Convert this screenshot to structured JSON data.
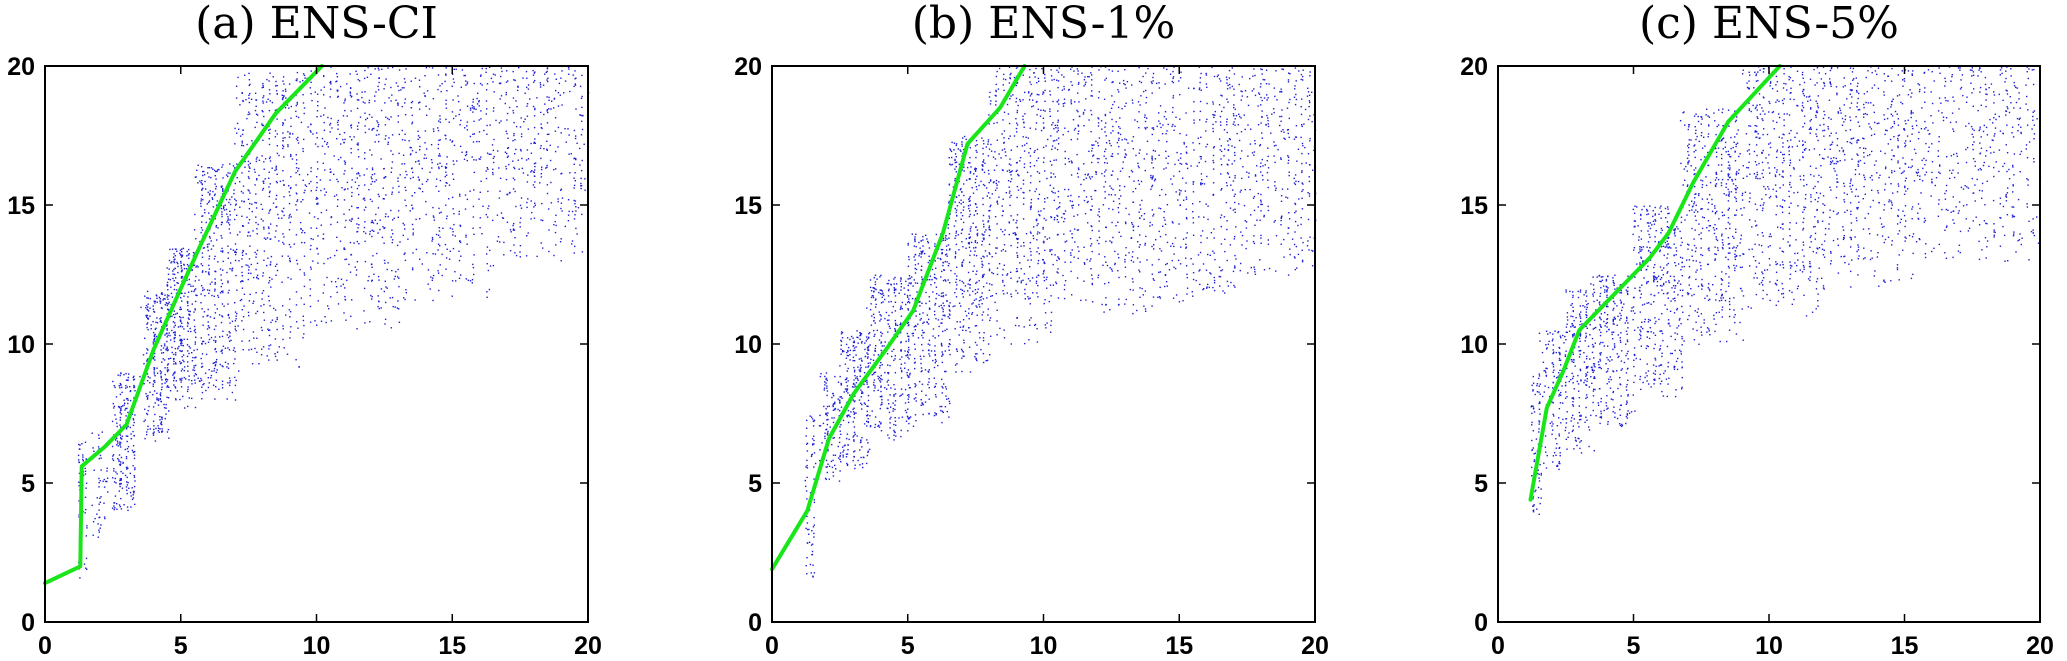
{
  "chart_data": [
    {
      "type": "scatter",
      "title": "(a) ENS-CI",
      "xlim": [
        0,
        20
      ],
      "ylim": [
        0,
        20
      ],
      "xticks": [
        0,
        5,
        10,
        15,
        20
      ],
      "yticks": [
        0,
        5,
        10,
        15,
        20
      ],
      "grid": false,
      "point_color": "#1f1fd6",
      "line_color": "#19e619",
      "scatter_seed": 11,
      "scatter_regions": [
        {
          "x": [
            1.2,
            1.5
          ],
          "y": [
            1.5,
            6.5
          ],
          "n": 60
        },
        {
          "x": [
            1.8,
            2.2
          ],
          "y": [
            3.0,
            7.0
          ],
          "n": 50
        },
        {
          "x": [
            2.5,
            3.3
          ],
          "y": [
            4.0,
            9.0
          ],
          "n": 230
        },
        {
          "x": [
            3.6,
            4.5
          ],
          "y": [
            6.5,
            12.0
          ],
          "n": 260
        },
        {
          "x": [
            4.5,
            5.5
          ],
          "y": [
            7.5,
            13.5
          ],
          "n": 300
        },
        {
          "x": [
            5.5,
            7.0
          ],
          "y": [
            8.0,
            16.5
          ],
          "n": 420
        },
        {
          "x": [
            7.0,
            9.5
          ],
          "y": [
            9.0,
            19.8
          ],
          "n": 520
        },
        {
          "x": [
            9.5,
            13.0
          ],
          "y": [
            10.5,
            20.0
          ],
          "n": 520
        },
        {
          "x": [
            13.0,
            16.5
          ],
          "y": [
            11.5,
            20.0
          ],
          "n": 420
        },
        {
          "x": [
            16.5,
            20.0
          ],
          "y": [
            13.0,
            20.0
          ],
          "n": 380
        }
      ],
      "fit_line": {
        "x": [
          0,
          1.3,
          1.35,
          2.2,
          3.0,
          4.0,
          5.0,
          5.7,
          7.0,
          8.5,
          10.2
        ],
        "y": [
          1.4,
          2.0,
          5.6,
          6.3,
          7.1,
          9.8,
          12.0,
          13.5,
          16.2,
          18.3,
          20.0
        ]
      }
    },
    {
      "type": "scatter",
      "title": "(b) ENS-1%",
      "xlim": [
        0,
        20
      ],
      "ylim": [
        0,
        20
      ],
      "xticks": [
        0,
        5,
        10,
        15,
        20
      ],
      "yticks": [
        0,
        5,
        10,
        15,
        20
      ],
      "grid": false,
      "point_color": "#1f1fd6",
      "line_color": "#19e619",
      "scatter_seed": 23,
      "scatter_regions": [
        {
          "x": [
            1.2,
            1.6
          ],
          "y": [
            1.5,
            7.5
          ],
          "n": 70
        },
        {
          "x": [
            1.8,
            2.5
          ],
          "y": [
            5.0,
            9.0
          ],
          "n": 120
        },
        {
          "x": [
            2.5,
            3.6
          ],
          "y": [
            5.5,
            10.5
          ],
          "n": 260
        },
        {
          "x": [
            3.6,
            5.0
          ],
          "y": [
            6.5,
            12.5
          ],
          "n": 320
        },
        {
          "x": [
            5.0,
            6.5
          ],
          "y": [
            7.0,
            14.0
          ],
          "n": 360
        },
        {
          "x": [
            6.5,
            8.0
          ],
          "y": [
            9.0,
            17.5
          ],
          "n": 420
        },
        {
          "x": [
            8.0,
            10.5
          ],
          "y": [
            10.0,
            20.0
          ],
          "n": 520
        },
        {
          "x": [
            10.5,
            14.0
          ],
          "y": [
            11.0,
            20.0
          ],
          "n": 520
        },
        {
          "x": [
            14.0,
            17.0
          ],
          "y": [
            11.5,
            20.0
          ],
          "n": 400
        },
        {
          "x": [
            17.0,
            20.0
          ],
          "y": [
            12.5,
            20.0
          ],
          "n": 360
        }
      ],
      "fit_line": {
        "x": [
          0,
          1.3,
          2.1,
          3.0,
          4.2,
          5.2,
          6.3,
          7.2,
          8.4,
          9.3
        ],
        "y": [
          1.9,
          4.0,
          6.6,
          8.2,
          9.8,
          11.2,
          14.0,
          17.2,
          18.5,
          20.0
        ]
      }
    },
    {
      "type": "scatter",
      "title": "(c) ENS-5%",
      "xlim": [
        0,
        20
      ],
      "ylim": [
        0,
        20
      ],
      "xticks": [
        0,
        5,
        10,
        15,
        20
      ],
      "yticks": [
        0,
        5,
        10,
        15,
        20
      ],
      "grid": false,
      "point_color": "#1f1fd6",
      "line_color": "#19e619",
      "scatter_seed": 37,
      "scatter_regions": [
        {
          "x": [
            1.2,
            1.6
          ],
          "y": [
            3.8,
            9.0
          ],
          "n": 80
        },
        {
          "x": [
            1.6,
            2.4
          ],
          "y": [
            5.5,
            10.5
          ],
          "n": 140
        },
        {
          "x": [
            2.4,
            3.4
          ],
          "y": [
            6.0,
            12.0
          ],
          "n": 220
        },
        {
          "x": [
            3.4,
            5.0
          ],
          "y": [
            7.0,
            12.5
          ],
          "n": 300
        },
        {
          "x": [
            5.0,
            6.8
          ],
          "y": [
            8.0,
            15.0
          ],
          "n": 380
        },
        {
          "x": [
            6.8,
            9.0
          ],
          "y": [
            10.0,
            18.5
          ],
          "n": 460
        },
        {
          "x": [
            9.0,
            12.0
          ],
          "y": [
            11.0,
            20.0
          ],
          "n": 520
        },
        {
          "x": [
            12.0,
            15.5
          ],
          "y": [
            12.0,
            20.0
          ],
          "n": 480
        },
        {
          "x": [
            15.5,
            20.0
          ],
          "y": [
            13.0,
            20.0
          ],
          "n": 420
        }
      ],
      "fit_line": {
        "x": [
          1.2,
          1.8,
          2.4,
          3.0,
          4.3,
          5.6,
          6.3,
          7.2,
          8.5,
          10.4
        ],
        "y": [
          4.4,
          7.7,
          9.0,
          10.5,
          11.8,
          13.1,
          14.0,
          15.8,
          18.0,
          20.0
        ]
      }
    }
  ]
}
